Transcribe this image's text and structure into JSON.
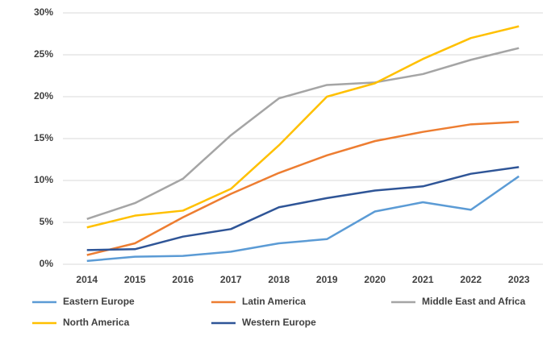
{
  "chart_data": {
    "type": "line",
    "categories": [
      "2014",
      "2015",
      "2016",
      "2017",
      "2018",
      "2019",
      "2020",
      "2021",
      "2022",
      "2023"
    ],
    "series": [
      {
        "name": "Eastern Europe",
        "color": "#5b9bd5",
        "values": [
          0.4,
          0.9,
          1.0,
          1.5,
          2.5,
          3.0,
          6.3,
          7.4,
          6.5,
          10.5
        ]
      },
      {
        "name": "Latin America",
        "color": "#ed7d31",
        "values": [
          1.1,
          2.5,
          5.6,
          8.4,
          10.9,
          13.0,
          14.7,
          15.8,
          16.7,
          17.0
        ]
      },
      {
        "name": "Middle East and Africa",
        "color": "#a5a5a5",
        "values": [
          5.4,
          7.3,
          10.2,
          15.4,
          19.8,
          21.4,
          21.7,
          22.7,
          24.4,
          25.8
        ]
      },
      {
        "name": "North America",
        "color": "#ffc000",
        "values": [
          4.4,
          5.8,
          6.4,
          9.0,
          14.2,
          20.0,
          21.6,
          24.5,
          27.0,
          28.4
        ]
      },
      {
        "name": "Western Europe",
        "color": "#2f5597",
        "values": [
          1.7,
          1.8,
          3.3,
          4.2,
          6.8,
          7.9,
          8.8,
          9.3,
          10.8,
          11.6
        ]
      }
    ],
    "ylim": [
      0,
      30
    ],
    "yticks": [
      {
        "value": 0,
        "label": "0%"
      },
      {
        "value": 5,
        "label": "5%"
      },
      {
        "value": 10,
        "label": "10%"
      },
      {
        "value": 15,
        "label": "15%"
      },
      {
        "value": 20,
        "label": "20%"
      },
      {
        "value": 25,
        "label": "25%"
      },
      {
        "value": 30,
        "label": "30%"
      }
    ],
    "grid": true
  }
}
